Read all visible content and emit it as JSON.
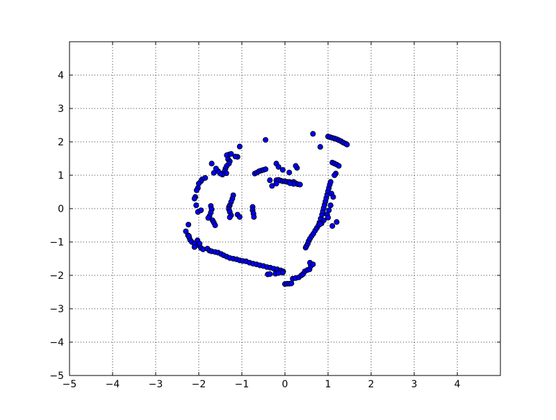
{
  "chart_data": {
    "type": "scatter",
    "title": "",
    "xlabel": "",
    "ylabel": "",
    "xlim": [
      -5,
      5
    ],
    "ylim": [
      -5,
      5
    ],
    "x_ticks": [
      -5,
      -4,
      -3,
      -2,
      -1,
      0,
      1,
      2,
      3,
      4
    ],
    "y_ticks": [
      -5,
      -4,
      -3,
      -2,
      -1,
      0,
      1,
      2,
      3,
      4
    ],
    "x_tick_labels": [
      "−5",
      "−4",
      "−3",
      "−2",
      "−1",
      "0",
      "1",
      "2",
      "3",
      "4"
    ],
    "y_tick_labels": [
      "−5",
      "−4",
      "−3",
      "−2",
      "−1",
      "0",
      "1",
      "2",
      "3",
      "4"
    ],
    "grid": true,
    "grid_style": "dotted",
    "marker_color": "#0000ff",
    "marker_edge_color": "#000000",
    "series": [
      {
        "points": [
          [
            -2.3,
            -0.68
          ],
          [
            -2.24,
            -0.48
          ],
          [
            -2.25,
            -0.8
          ],
          [
            -2.22,
            -0.87
          ],
          [
            -2.2,
            -0.94
          ],
          [
            -2.16,
            -1.0
          ],
          [
            -2.1,
            -1.05
          ],
          [
            -2.03,
            -0.95
          ],
          [
            -2.0,
            -1.1
          ],
          [
            -1.95,
            -1.18
          ],
          [
            -1.9,
            -1.22
          ],
          [
            -1.8,
            -1.2
          ],
          [
            -1.75,
            -1.26
          ],
          [
            -1.7,
            -1.28
          ],
          [
            -1.62,
            -1.3
          ],
          [
            -1.55,
            -1.32
          ],
          [
            -1.48,
            -1.36
          ],
          [
            -1.42,
            -1.4
          ],
          [
            -1.35,
            -1.44
          ],
          [
            -1.28,
            -1.48
          ],
          [
            -1.2,
            -1.5
          ],
          [
            -1.12,
            -1.52
          ],
          [
            -1.05,
            -1.55
          ],
          [
            -0.98,
            -1.57
          ],
          [
            -0.9,
            -1.58
          ],
          [
            -0.82,
            -1.62
          ],
          [
            -0.74,
            -1.65
          ],
          [
            -0.66,
            -1.67
          ],
          [
            -0.58,
            -1.7
          ],
          [
            -0.5,
            -1.72
          ],
          [
            -0.42,
            -1.75
          ],
          [
            -0.34,
            -1.77
          ],
          [
            -0.26,
            -1.8
          ],
          [
            -0.18,
            -1.82
          ],
          [
            -0.1,
            -1.85
          ],
          [
            -0.04,
            -1.88
          ],
          [
            -0.4,
            -1.97
          ],
          [
            -0.35,
            -1.96
          ],
          [
            -0.22,
            -1.95
          ],
          [
            -0.15,
            -1.93
          ],
          [
            -0.05,
            -1.92
          ],
          [
            0.0,
            -2.26
          ],
          [
            0.05,
            -2.25
          ],
          [
            0.1,
            -2.25
          ],
          [
            0.15,
            -2.24
          ],
          [
            0.18,
            -2.1
          ],
          [
            0.25,
            -2.08
          ],
          [
            0.32,
            -2.06
          ],
          [
            0.38,
            -2.0
          ],
          [
            0.42,
            -1.96
          ],
          [
            0.46,
            -1.88
          ],
          [
            0.52,
            -1.84
          ],
          [
            0.57,
            -1.82
          ],
          [
            0.6,
            -1.72
          ],
          [
            0.58,
            -1.62
          ],
          [
            0.65,
            -1.67
          ],
          [
            0.48,
            -1.17
          ],
          [
            0.5,
            -1.12
          ],
          [
            0.53,
            -1.05
          ],
          [
            0.55,
            -0.97
          ],
          [
            0.58,
            -0.9
          ],
          [
            0.62,
            -0.82
          ],
          [
            0.66,
            -0.75
          ],
          [
            0.7,
            -0.66
          ],
          [
            0.74,
            -0.58
          ],
          [
            0.78,
            -0.5
          ],
          [
            0.8,
            -0.42
          ],
          [
            0.83,
            -0.3
          ],
          [
            0.86,
            -0.18
          ],
          [
            0.88,
            -0.08
          ],
          [
            0.9,
            0.02
          ],
          [
            0.92,
            0.12
          ],
          [
            0.94,
            0.22
          ],
          [
            0.96,
            0.32
          ],
          [
            0.98,
            0.42
          ],
          [
            1.0,
            0.52
          ],
          [
            1.02,
            0.62
          ],
          [
            1.04,
            0.72
          ],
          [
            1.06,
            0.8
          ],
          [
            1.08,
            0.45
          ],
          [
            1.12,
            0.35
          ],
          [
            1.06,
            0.1
          ],
          [
            1.02,
            -0.05
          ],
          [
            0.98,
            -0.18
          ],
          [
            1.0,
            -0.27
          ],
          [
            0.9,
            -0.35
          ],
          [
            0.85,
            -0.44
          ],
          [
            0.82,
            -0.46
          ],
          [
            1.1,
            -0.52
          ],
          [
            1.2,
            -0.4
          ],
          [
            1.1,
            1.38
          ],
          [
            1.15,
            1.35
          ],
          [
            1.2,
            1.32
          ],
          [
            1.25,
            1.28
          ],
          [
            1.18,
            1.05
          ],
          [
            1.15,
            1.0
          ],
          [
            1.0,
            2.16
          ],
          [
            1.05,
            2.14
          ],
          [
            1.1,
            2.12
          ],
          [
            1.15,
            2.1
          ],
          [
            1.2,
            2.08
          ],
          [
            1.25,
            2.05
          ],
          [
            1.3,
            2.02
          ],
          [
            1.35,
            1.98
          ],
          [
            1.4,
            1.95
          ],
          [
            1.44,
            1.92
          ],
          [
            0.65,
            2.24
          ],
          [
            0.82,
            1.85
          ],
          [
            -0.2,
            0.85
          ],
          [
            -0.15,
            0.86
          ],
          [
            -0.1,
            0.84
          ],
          [
            -0.05,
            0.82
          ],
          [
            0.0,
            0.82
          ],
          [
            0.05,
            0.8
          ],
          [
            0.1,
            0.8
          ],
          [
            0.15,
            0.78
          ],
          [
            0.2,
            0.8
          ],
          [
            0.25,
            0.76
          ],
          [
            0.3,
            0.73
          ],
          [
            0.35,
            0.72
          ],
          [
            0.2,
            0.74
          ],
          [
            0.12,
            0.76
          ],
          [
            -0.35,
            0.85
          ],
          [
            -0.3,
            0.68
          ],
          [
            -0.2,
            0.75
          ],
          [
            -0.05,
            1.16
          ],
          [
            0.1,
            1.08
          ],
          [
            0.28,
            1.22
          ],
          [
            0.25,
            1.28
          ],
          [
            -0.7,
            1.05
          ],
          [
            -0.65,
            1.08
          ],
          [
            -0.6,
            1.12
          ],
          [
            -0.55,
            1.14
          ],
          [
            -0.5,
            1.16
          ],
          [
            -0.45,
            1.18
          ],
          [
            -0.45,
            2.06
          ],
          [
            -0.2,
            1.35
          ],
          [
            -0.15,
            1.25
          ],
          [
            -1.05,
            1.86
          ],
          [
            -1.1,
            1.55
          ],
          [
            -1.15,
            1.56
          ],
          [
            -1.3,
            1.62
          ],
          [
            -1.35,
            1.6
          ],
          [
            -1.25,
            1.64
          ],
          [
            -1.32,
            1.48
          ],
          [
            -1.28,
            1.42
          ],
          [
            -1.3,
            1.35
          ],
          [
            -1.35,
            1.28
          ],
          [
            -1.38,
            1.2
          ],
          [
            -1.4,
            1.12
          ],
          [
            -1.36,
            1.06
          ],
          [
            -1.45,
            1.02
          ],
          [
            -1.5,
            1.05
          ],
          [
            -1.55,
            1.12
          ],
          [
            -1.6,
            1.2
          ],
          [
            -1.7,
            1.35
          ],
          [
            -1.65,
            1.07
          ],
          [
            -1.85,
            0.92
          ],
          [
            -1.92,
            0.88
          ],
          [
            -1.95,
            0.82
          ],
          [
            -2.0,
            0.75
          ],
          [
            -2.02,
            0.62
          ],
          [
            -2.05,
            0.55
          ],
          [
            -2.08,
            0.35
          ],
          [
            -2.1,
            0.3
          ],
          [
            -2.06,
            0.1
          ],
          [
            -2.02,
            -0.1
          ],
          [
            -1.95,
            -0.05
          ],
          [
            -1.72,
            0.08
          ],
          [
            -1.7,
            -0.02
          ],
          [
            -1.72,
            -0.12
          ],
          [
            -1.75,
            -0.22
          ],
          [
            -1.78,
            -0.28
          ],
          [
            -1.68,
            -0.35
          ],
          [
            -1.65,
            -0.42
          ],
          [
            -1.62,
            -0.5
          ],
          [
            -1.2,
            0.4
          ],
          [
            -1.22,
            0.3
          ],
          [
            -1.25,
            0.2
          ],
          [
            -1.28,
            0.1
          ],
          [
            -1.3,
            0.05
          ],
          [
            -1.3,
            -0.02
          ],
          [
            -1.28,
            -0.1
          ],
          [
            -1.25,
            -0.2
          ],
          [
            -1.28,
            -0.26
          ],
          [
            -1.1,
            -0.18
          ],
          [
            -1.05,
            -0.25
          ],
          [
            -0.75,
            0.05
          ],
          [
            -0.75,
            -0.05
          ],
          [
            -0.73,
            -0.15
          ],
          [
            -0.72,
            -0.25
          ],
          [
            -2.23,
            -0.82
          ],
          [
            -2.1,
            -1.15
          ],
          [
            -1.98,
            -1.05
          ]
        ]
      }
    ]
  }
}
